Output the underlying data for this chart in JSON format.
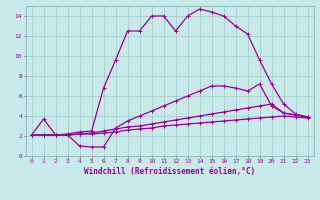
{
  "xlabel": "Windchill (Refroidissement éolien,°C)",
  "bg_color": "#c8eaea",
  "line_color": "#990099",
  "grid_color": "#a0c8c8",
  "xlim": [
    -0.5,
    23.5
  ],
  "ylim": [
    0,
    15
  ],
  "xticks": [
    0,
    1,
    2,
    3,
    4,
    5,
    6,
    7,
    8,
    9,
    10,
    11,
    12,
    13,
    14,
    15,
    16,
    17,
    18,
    19,
    20,
    21,
    22,
    23
  ],
  "yticks": [
    0,
    2,
    4,
    6,
    8,
    10,
    12,
    14
  ],
  "lines": [
    {
      "x": [
        0,
        1,
        2,
        3,
        4,
        5,
        6,
        7,
        8,
        9,
        10,
        11,
        12,
        13,
        14,
        15,
        16,
        17,
        18,
        19,
        20,
        21,
        22,
        23
      ],
      "y": [
        2.1,
        3.7,
        2.1,
        2.2,
        2.4,
        2.5,
        6.8,
        9.6,
        12.5,
        12.5,
        14.0,
        14.0,
        12.5,
        14.0,
        14.7,
        14.4,
        14.0,
        13.0,
        12.2,
        9.6,
        7.2,
        5.2,
        4.2,
        3.9
      ]
    },
    {
      "x": [
        0,
        1,
        2,
        3,
        4,
        5,
        6,
        7,
        8,
        9,
        10,
        11,
        12,
        13,
        14,
        15,
        16,
        17,
        18,
        19,
        20,
        21,
        22,
        23
      ],
      "y": [
        2.1,
        2.1,
        2.1,
        2.1,
        1.0,
        0.9,
        0.9,
        2.8,
        3.5,
        4.0,
        4.5,
        5.0,
        5.5,
        6.0,
        6.5,
        7.0,
        7.0,
        6.8,
        6.5,
        7.2,
        5.0,
        4.3,
        4.1,
        3.9
      ]
    },
    {
      "x": [
        0,
        1,
        2,
        3,
        4,
        5,
        6,
        7,
        8,
        9,
        10,
        11,
        12,
        13,
        14,
        15,
        16,
        17,
        18,
        19,
        20,
        21,
        22,
        23
      ],
      "y": [
        2.1,
        2.1,
        2.1,
        2.1,
        2.2,
        2.3,
        2.5,
        2.7,
        2.9,
        3.0,
        3.2,
        3.4,
        3.6,
        3.8,
        4.0,
        4.2,
        4.4,
        4.6,
        4.8,
        5.0,
        5.2,
        4.3,
        4.1,
        3.9
      ]
    },
    {
      "x": [
        0,
        1,
        2,
        3,
        4,
        5,
        6,
        7,
        8,
        9,
        10,
        11,
        12,
        13,
        14,
        15,
        16,
        17,
        18,
        19,
        20,
        21,
        22,
        23
      ],
      "y": [
        2.1,
        2.1,
        2.1,
        2.1,
        2.2,
        2.2,
        2.3,
        2.4,
        2.6,
        2.7,
        2.8,
        3.0,
        3.1,
        3.2,
        3.3,
        3.4,
        3.5,
        3.6,
        3.7,
        3.8,
        3.9,
        4.0,
        3.9,
        3.8
      ]
    }
  ],
  "marker": "+",
  "markersize": 3,
  "linewidth": 0.9,
  "tick_fontsize": 4.5,
  "xlabel_fontsize": 5.5
}
